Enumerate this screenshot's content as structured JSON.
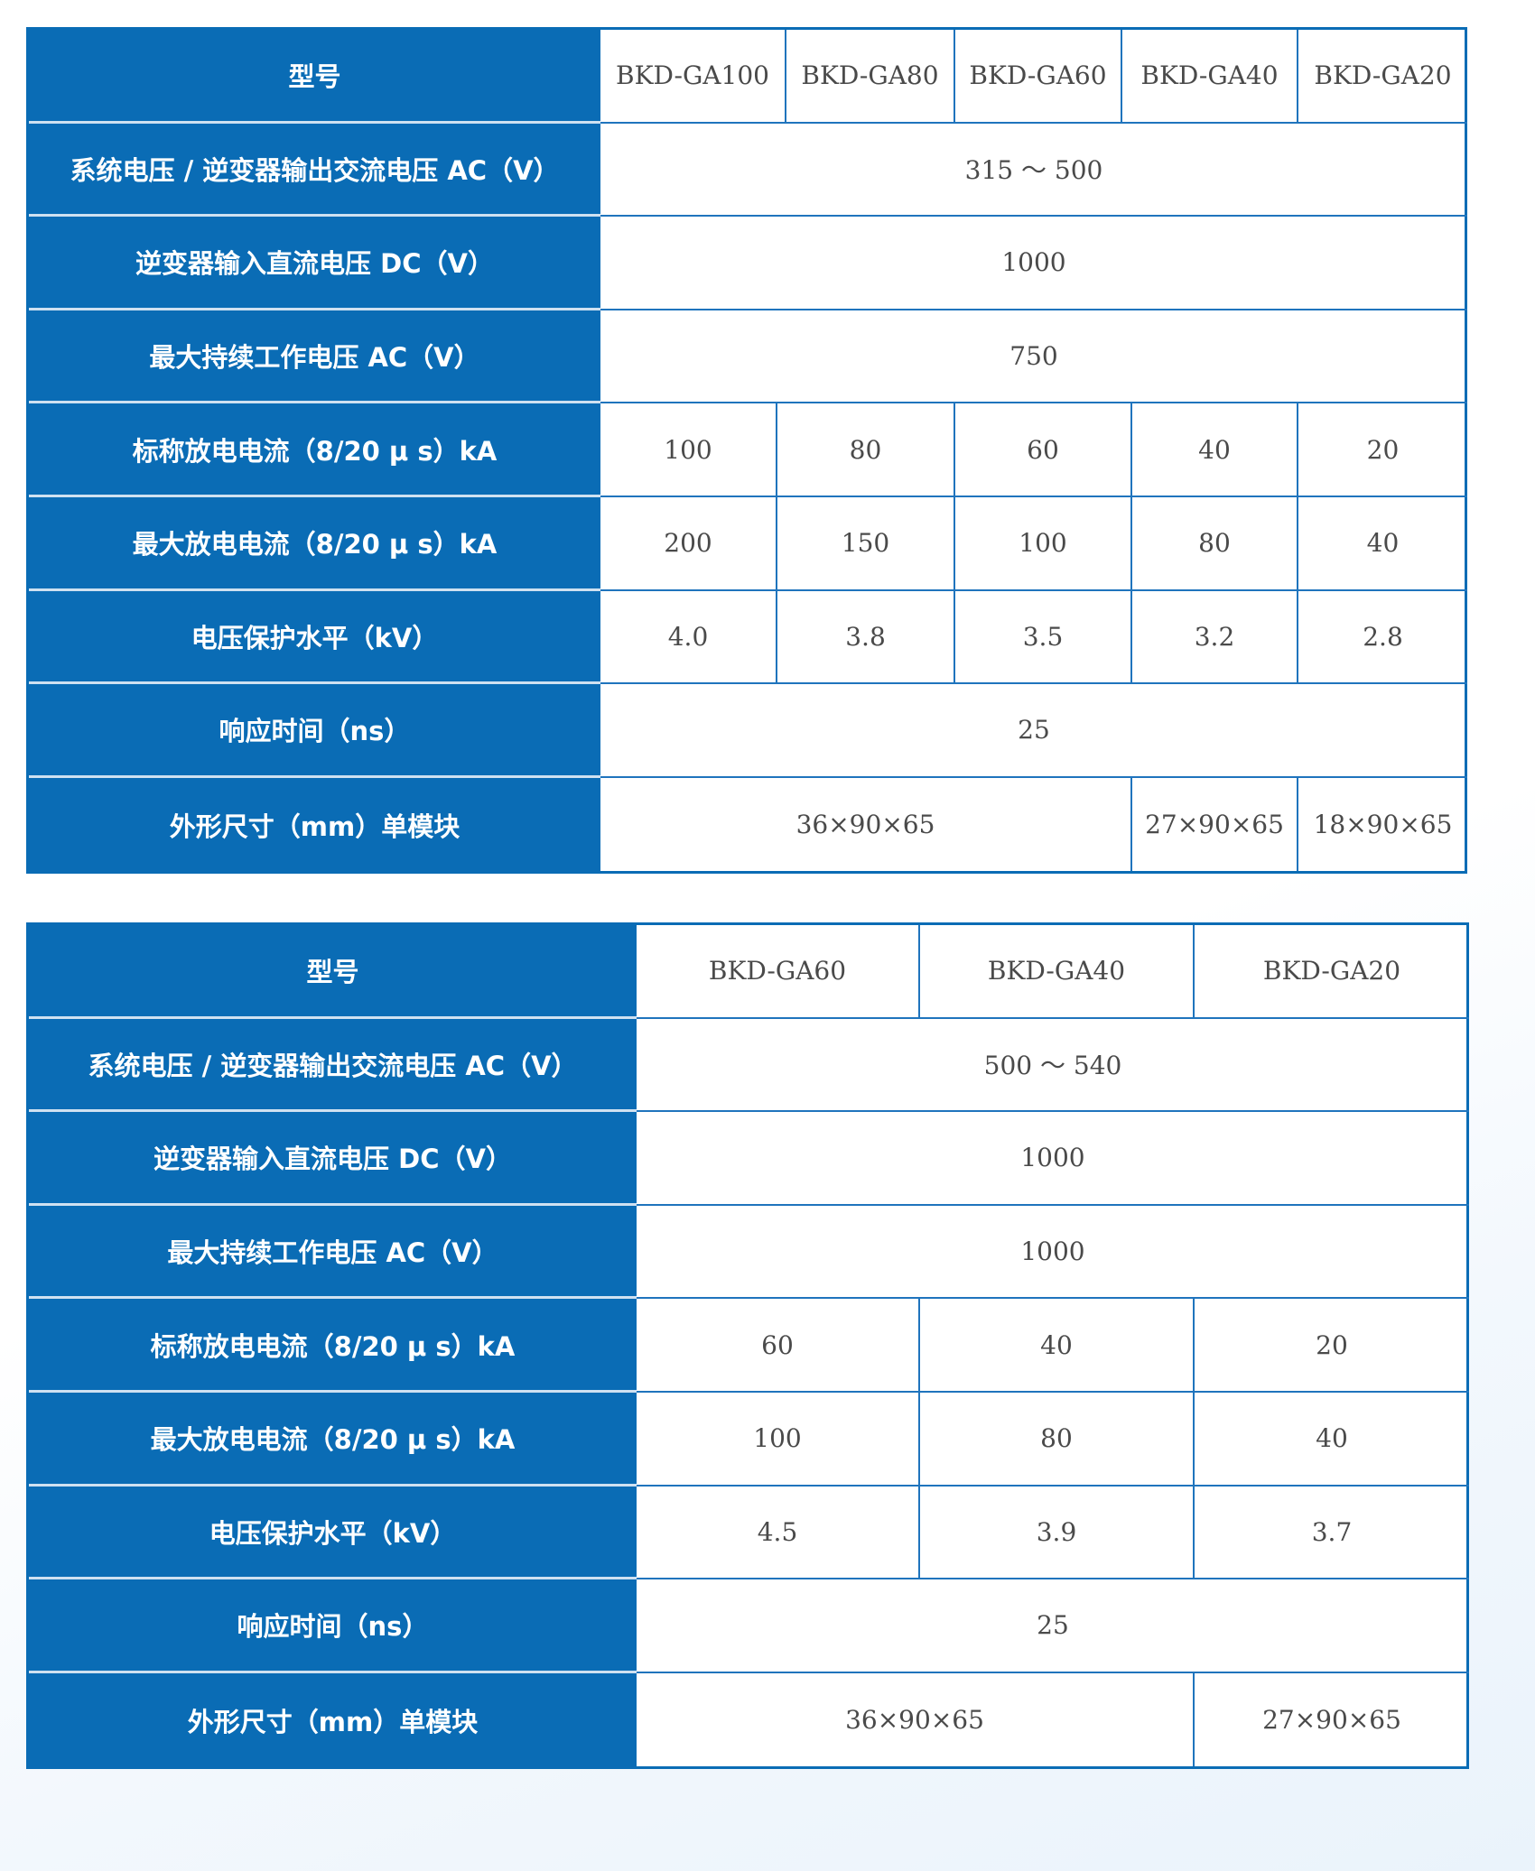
{
  "colors": {
    "header_bg": "#0a6cb5",
    "border": "#1f74bd",
    "value_text": "#4a4a4a",
    "label_text": "#ffffff"
  },
  "tables": [
    {
      "rows": [
        {
          "label": "型号",
          "cells": [
            {
              "text": "BKD-GA100",
              "span": 1
            },
            {
              "text": "BKD-GA80",
              "span": 1
            },
            {
              "text": "BKD-GA60",
              "span": 1
            },
            {
              "text": "BKD-GA40",
              "span": 1
            },
            {
              "text": "BKD-GA20",
              "span": 1
            }
          ]
        },
        {
          "label": "系统电压 / 逆变器输出交流电压 AC（V）",
          "cells": [
            {
              "text": "315 ～ 500",
              "span": 5
            }
          ]
        },
        {
          "label": "逆变器输入直流电压 DC（V）",
          "cells": [
            {
              "text": "1000",
              "span": 5
            }
          ]
        },
        {
          "label": "最大持续工作电压 AC（V）",
          "cells": [
            {
              "text": "750",
              "span": 5
            }
          ]
        },
        {
          "label": "标称放电电流（8/20 μ s）kA",
          "cells": [
            {
              "text": "100",
              "span": 1
            },
            {
              "text": "80",
              "span": 1
            },
            {
              "text": "60",
              "span": 1
            },
            {
              "text": "40",
              "span": 1
            },
            {
              "text": "20",
              "span": 1
            }
          ]
        },
        {
          "label": "最大放电电流（8/20 μ s）kA",
          "cells": [
            {
              "text": "200",
              "span": 1
            },
            {
              "text": "150",
              "span": 1
            },
            {
              "text": "100",
              "span": 1
            },
            {
              "text": "80",
              "span": 1
            },
            {
              "text": "40",
              "span": 1
            }
          ]
        },
        {
          "label": "电压保护水平（kV）",
          "cells": [
            {
              "text": "4.0",
              "span": 1
            },
            {
              "text": "3.8",
              "span": 1
            },
            {
              "text": "3.5",
              "span": 1
            },
            {
              "text": "3.2",
              "span": 1
            },
            {
              "text": "2.8",
              "span": 1
            }
          ]
        },
        {
          "label": "响应时间（ns）",
          "cells": [
            {
              "text": "25",
              "span": 5
            }
          ]
        },
        {
          "label": "外形尺寸（mm）单模块",
          "cells": [
            {
              "text": "36×90×65",
              "span": 3
            },
            {
              "text": "27×90×65",
              "span": 1
            },
            {
              "text": "18×90×65",
              "span": 1
            }
          ]
        }
      ]
    },
    {
      "rows": [
        {
          "label": "型号",
          "cells": [
            {
              "text": "BKD-GA60",
              "span": 1
            },
            {
              "text": "BKD-GA40",
              "span": 1
            },
            {
              "text": "BKD-GA20",
              "span": 1
            }
          ]
        },
        {
          "label": "系统电压 / 逆变器输出交流电压 AC（V）",
          "cells": [
            {
              "text": "500 ～ 540",
              "span": 3
            }
          ]
        },
        {
          "label": "逆变器输入直流电压 DC（V）",
          "cells": [
            {
              "text": "1000",
              "span": 3
            }
          ]
        },
        {
          "label": "最大持续工作电压 AC（V）",
          "cells": [
            {
              "text": "1000",
              "span": 3
            }
          ]
        },
        {
          "label": "标称放电电流（8/20 μ s）kA",
          "cells": [
            {
              "text": "60",
              "span": 1
            },
            {
              "text": "40",
              "span": 1
            },
            {
              "text": "20",
              "span": 1
            }
          ]
        },
        {
          "label": "最大放电电流（8/20 μ s）kA",
          "cells": [
            {
              "text": "100",
              "span": 1
            },
            {
              "text": "80",
              "span": 1
            },
            {
              "text": "40",
              "span": 1
            }
          ]
        },
        {
          "label": "电压保护水平（kV）",
          "cells": [
            {
              "text": "4.5",
              "span": 1
            },
            {
              "text": "3.9",
              "span": 1
            },
            {
              "text": "3.7",
              "span": 1
            }
          ]
        },
        {
          "label": "响应时间（ns）",
          "cells": [
            {
              "text": "25",
              "span": 3
            }
          ]
        },
        {
          "label": "外形尺寸（mm）单模块",
          "cells": [
            {
              "text": "36×90×65",
              "span": 2
            },
            {
              "text": "27×90×65",
              "span": 1
            }
          ]
        }
      ]
    }
  ]
}
